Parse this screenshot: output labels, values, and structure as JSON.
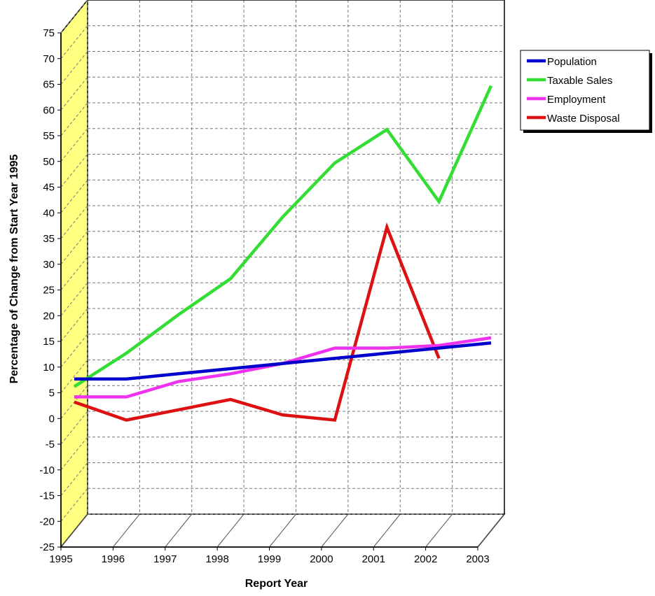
{
  "chart_data": {
    "type": "line",
    "title": "",
    "xlabel": "Report Year",
    "ylabel": "Percentage of Change from Start Year 1995",
    "x": [
      "1995",
      "1996",
      "1997",
      "1998",
      "1999",
      "2000",
      "2001",
      "2002",
      "2003"
    ],
    "x_ticks": [
      "1995",
      "1996",
      "1997",
      "1998",
      "1999",
      "2000",
      "2001",
      "2002",
      "2003"
    ],
    "y_ticks": [
      "75",
      "70",
      "65",
      "60",
      "55",
      "50",
      "45",
      "40",
      "35",
      "30",
      "25",
      "20",
      "15",
      "10",
      "5",
      "0",
      "-5",
      "-10",
      "-15",
      "-20",
      "-25"
    ],
    "ylim": [
      -25,
      75
    ],
    "grid": true,
    "style": "3d",
    "legend_position": "top-right",
    "wall_color": "#FFFF80",
    "series": [
      {
        "name": "Population",
        "color": "#0000CC",
        "values": [
          4.5,
          4.5,
          5.5,
          6.5,
          7.5,
          8.5,
          9.5,
          10.5,
          11.5
        ]
      },
      {
        "name": "Taxable Sales",
        "color": "#33DD33",
        "values": [
          3,
          9.5,
          17,
          24,
          36,
          46.5,
          53,
          39,
          61.5
        ]
      },
      {
        "name": "Employment",
        "color": "#EE33EE",
        "values": [
          1,
          1,
          4,
          5.5,
          7.5,
          10.5,
          10.5,
          11,
          12.5
        ]
      },
      {
        "name": "Waste Disposal",
        "color": "#DD1111",
        "values": [
          0,
          -3.5,
          -1.5,
          0.5,
          -2.5,
          -3.5,
          34,
          8.5,
          null
        ]
      }
    ]
  }
}
